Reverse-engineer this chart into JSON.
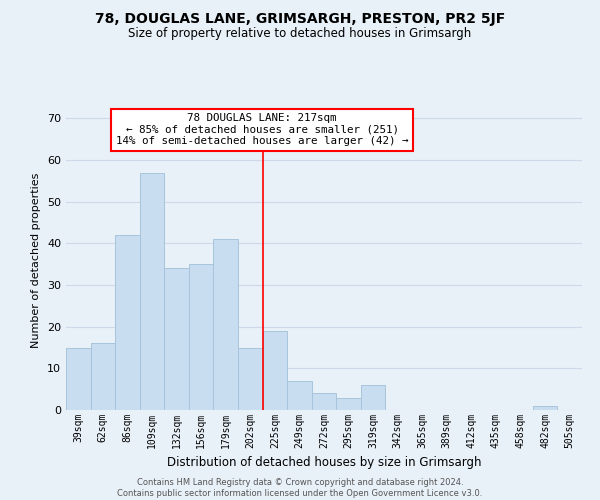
{
  "title": "78, DOUGLAS LANE, GRIMSARGH, PRESTON, PR2 5JF",
  "subtitle": "Size of property relative to detached houses in Grimsargh",
  "xlabel": "Distribution of detached houses by size in Grimsargh",
  "ylabel": "Number of detached properties",
  "bar_labels": [
    "39sqm",
    "62sqm",
    "86sqm",
    "109sqm",
    "132sqm",
    "156sqm",
    "179sqm",
    "202sqm",
    "225sqm",
    "249sqm",
    "272sqm",
    "295sqm",
    "319sqm",
    "342sqm",
    "365sqm",
    "389sqm",
    "412sqm",
    "435sqm",
    "458sqm",
    "482sqm",
    "505sqm"
  ],
  "bar_values": [
    15,
    16,
    42,
    57,
    34,
    35,
    41,
    15,
    19,
    7,
    4,
    3,
    6,
    0,
    0,
    0,
    0,
    0,
    0,
    1,
    0
  ],
  "bar_color": "#c8ddf0",
  "bar_edge_color": "#a8c4dc",
  "ylim": [
    0,
    72
  ],
  "yticks": [
    0,
    10,
    20,
    30,
    40,
    50,
    60,
    70
  ],
  "property_size_label": "78 DOUGLAS LANE: 217sqm",
  "annotation_line1": "← 85% of detached houses are smaller (251)",
  "annotation_line2": "14% of semi-detached houses are larger (42) →",
  "vline_x": 7.5,
  "grid_color": "#ccd9e8",
  "background_color": "#e8f0f8",
  "footer_line1": "Contains HM Land Registry data © Crown copyright and database right 2024.",
  "footer_line2": "Contains public sector information licensed under the Open Government Licence v3.0."
}
